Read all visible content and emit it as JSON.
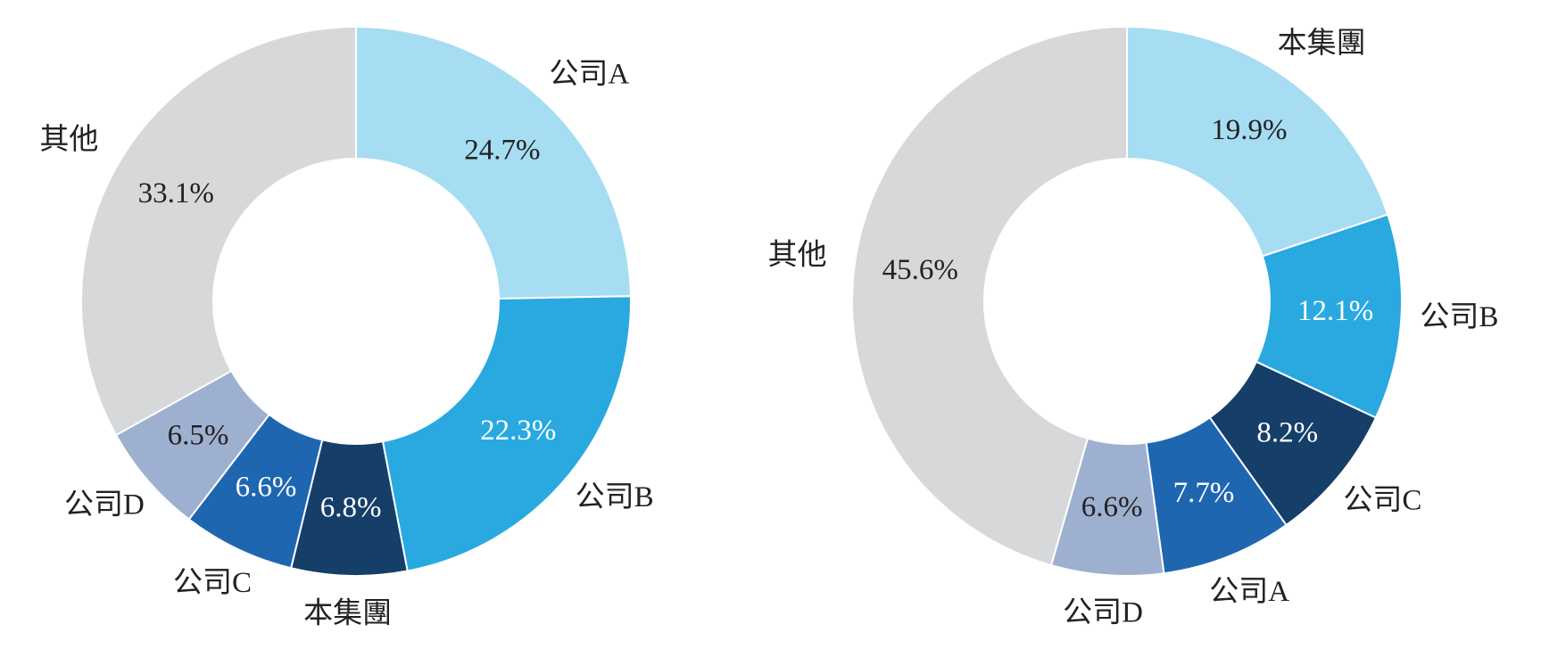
{
  "chart_data": [
    {
      "type": "donut",
      "categories": [
        "公司A",
        "公司B",
        "本集團",
        "公司C",
        "公司D",
        "其他"
      ],
      "values": [
        24.7,
        22.3,
        6.8,
        6.6,
        6.5,
        33.1
      ],
      "value_labels": [
        "24.7%",
        "22.3%",
        "6.8%",
        "6.6%",
        "6.5%",
        "33.1%"
      ],
      "colors": [
        "#a6ddf2",
        "#29a9e0",
        "#153f69",
        "#1f66b1",
        "#9eb0cf",
        "#d7d8da"
      ]
    },
    {
      "type": "donut",
      "categories": [
        "本集團",
        "公司B",
        "公司C",
        "公司A",
        "公司D",
        "其他"
      ],
      "values": [
        19.9,
        12.1,
        8.2,
        7.7,
        6.6,
        45.6
      ],
      "value_labels": [
        "19.9%",
        "12.1%",
        "8.2%",
        "7.7%",
        "6.6%",
        "45.6%"
      ],
      "colors": [
        "#a6ddf2",
        "#29a9e0",
        "#153f69",
        "#1f66b1",
        "#9eb0cf",
        "#d7d8da"
      ]
    }
  ]
}
